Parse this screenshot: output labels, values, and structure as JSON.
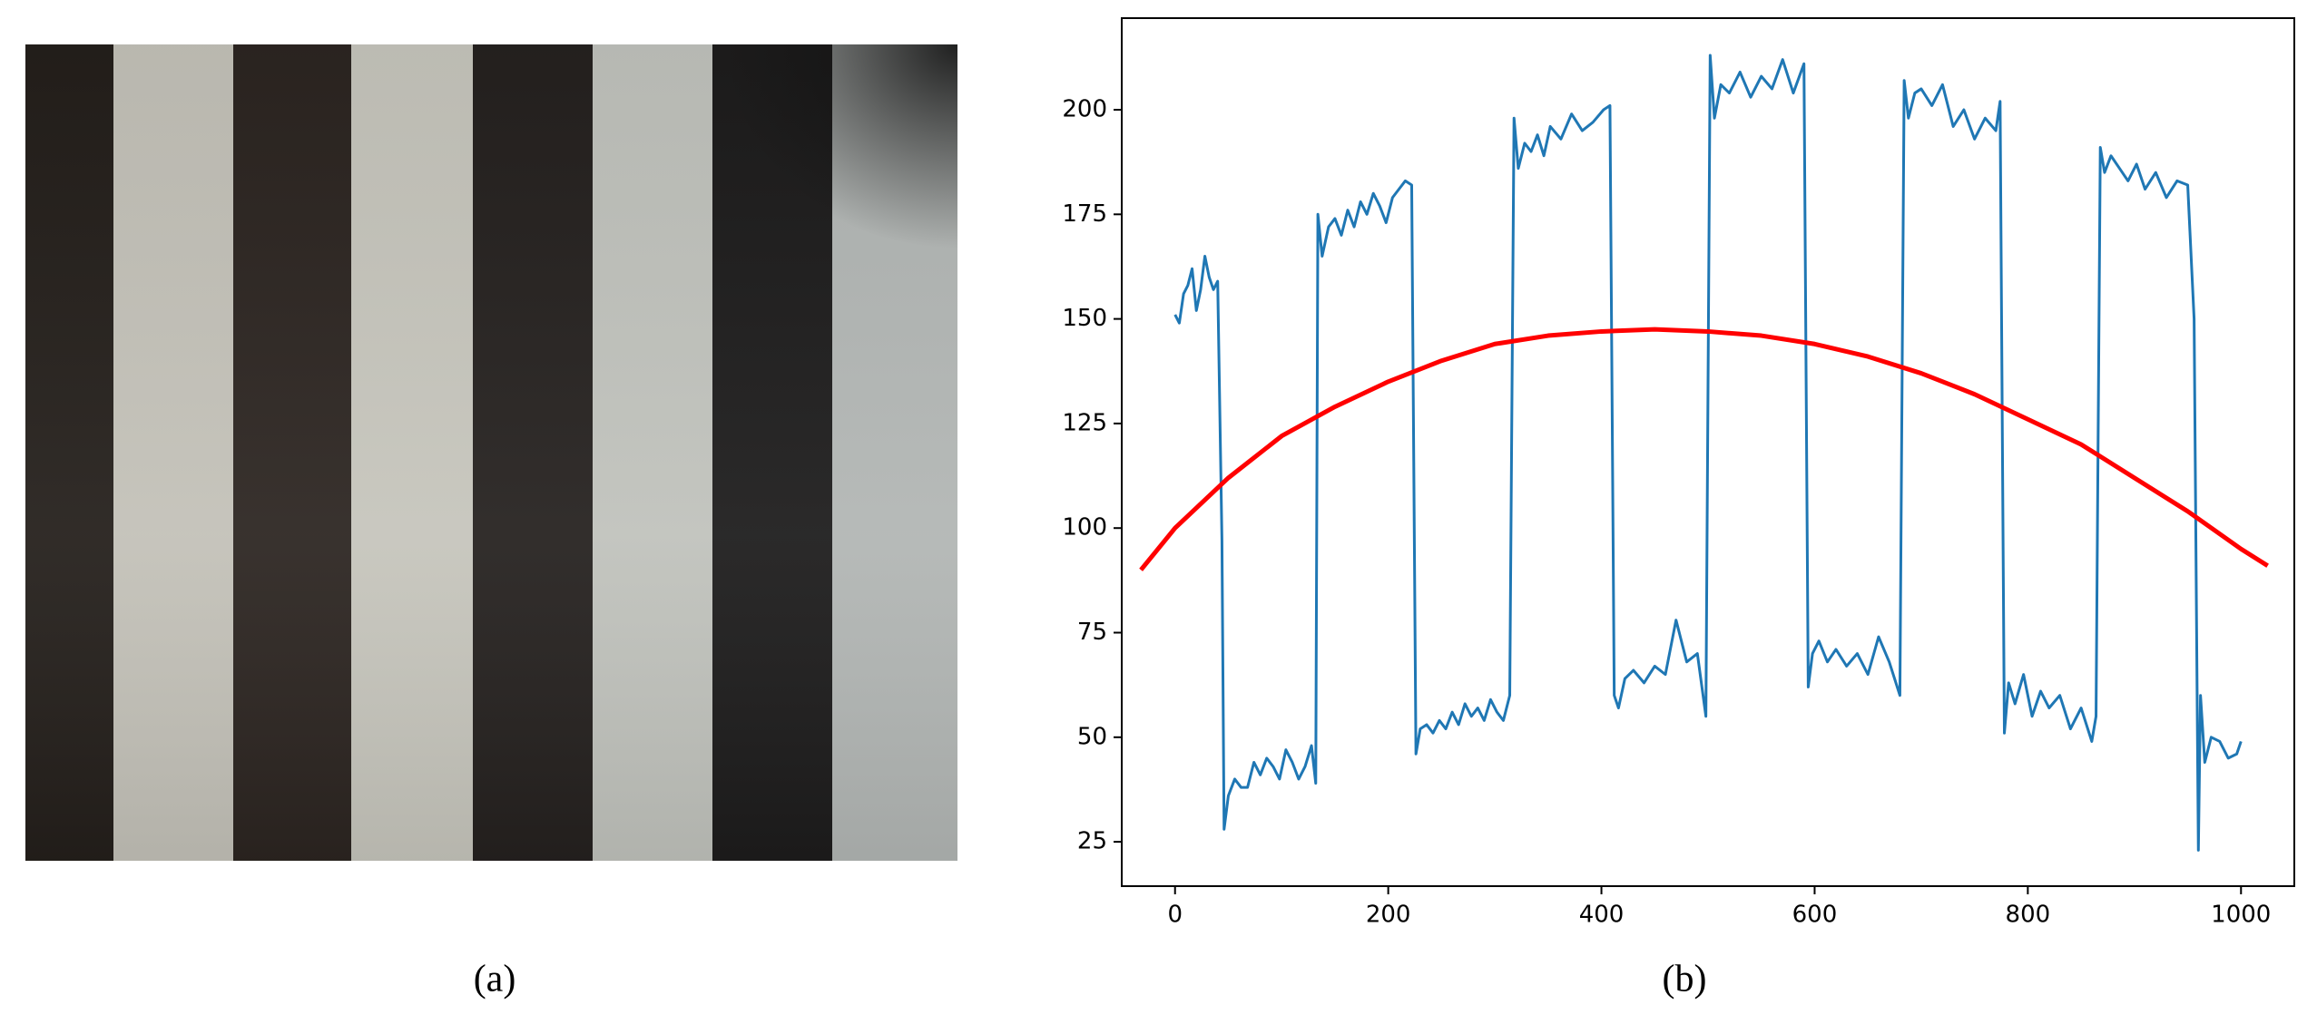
{
  "panel_a": {
    "caption": "(a)"
  },
  "panel_b": {
    "caption": "(b)"
  },
  "chart_data": {
    "type": "line",
    "xlim": [
      -50,
      1050
    ],
    "ylim": [
      14.4,
      221.9
    ],
    "xticks": [
      0,
      200,
      400,
      600,
      800,
      1000
    ],
    "yticks": [
      25,
      50,
      75,
      100,
      125,
      150,
      175,
      200
    ],
    "series": [
      {
        "color": "#1f77b4",
        "line_width": 3,
        "x": [
          0,
          4,
          8,
          12,
          16,
          20,
          24,
          28,
          32,
          36,
          40,
          44,
          46,
          50,
          56,
          62,
          68,
          74,
          80,
          86,
          92,
          98,
          104,
          110,
          116,
          122,
          128,
          132,
          134,
          138,
          144,
          150,
          156,
          162,
          168,
          174,
          180,
          186,
          192,
          198,
          204,
          210,
          216,
          222,
          226,
          230,
          236,
          242,
          248,
          254,
          260,
          266,
          272,
          278,
          284,
          290,
          296,
          302,
          308,
          314,
          318,
          322,
          328,
          334,
          340,
          346,
          352,
          362,
          372,
          382,
          392,
          402,
          408,
          412,
          416,
          422,
          430,
          440,
          450,
          460,
          470,
          480,
          490,
          498,
          502,
          506,
          512,
          520,
          530,
          540,
          550,
          560,
          570,
          580,
          590,
          594,
          598,
          604,
          612,
          620,
          630,
          640,
          650,
          660,
          670,
          680,
          684,
          688,
          694,
          700,
          710,
          720,
          730,
          740,
          750,
          760,
          770,
          774,
          778,
          782,
          788,
          796,
          804,
          812,
          820,
          830,
          840,
          850,
          860,
          864,
          868,
          872,
          878,
          886,
          894,
          902,
          910,
          920,
          930,
          940,
          950,
          956,
          960,
          962,
          966,
          972,
          980,
          988,
          996,
          1000
        ],
        "values": [
          151,
          149,
          156,
          158,
          162,
          152,
          157,
          165,
          160,
          157,
          159,
          97,
          28,
          36,
          40,
          38,
          38,
          44,
          41,
          45,
          43,
          40,
          47,
          44,
          40,
          43,
          48,
          39,
          175,
          165,
          172,
          174,
          170,
          176,
          172,
          178,
          175,
          180,
          177,
          173,
          179,
          181,
          183,
          182,
          46,
          52,
          53,
          51,
          54,
          52,
          56,
          53,
          58,
          55,
          57,
          54,
          59,
          56,
          54,
          60,
          198,
          186,
          192,
          190,
          194,
          189,
          196,
          193,
          199,
          195,
          197,
          200,
          201,
          60,
          57,
          64,
          66,
          63,
          67,
          65,
          78,
          68,
          70,
          55,
          213,
          198,
          206,
          204,
          209,
          203,
          208,
          205,
          212,
          204,
          211,
          62,
          70,
          73,
          68,
          71,
          67,
          70,
          65,
          74,
          68,
          60,
          207,
          198,
          204,
          205,
          201,
          206,
          196,
          200,
          193,
          198,
          195,
          202,
          51,
          63,
          58,
          65,
          55,
          61,
          57,
          60,
          52,
          57,
          49,
          55,
          191,
          185,
          189,
          186,
          183,
          187,
          181,
          185,
          179,
          183,
          182,
          150,
          23,
          60,
          44,
          50,
          49,
          45,
          46,
          49
        ]
      },
      {
        "color": "#ff0000",
        "line_width": 5,
        "x": [
          -32,
          0,
          50,
          100,
          150,
          200,
          250,
          300,
          350,
          400,
          450,
          500,
          550,
          600,
          650,
          700,
          750,
          800,
          850,
          900,
          950,
          1000,
          1025
        ],
        "values": [
          90,
          100,
          112,
          122,
          129,
          135,
          140,
          144,
          146,
          147,
          147.5,
          147,
          146,
          144,
          141,
          137,
          132,
          126,
          120,
          112,
          104,
          95,
          91
        ]
      }
    ]
  }
}
